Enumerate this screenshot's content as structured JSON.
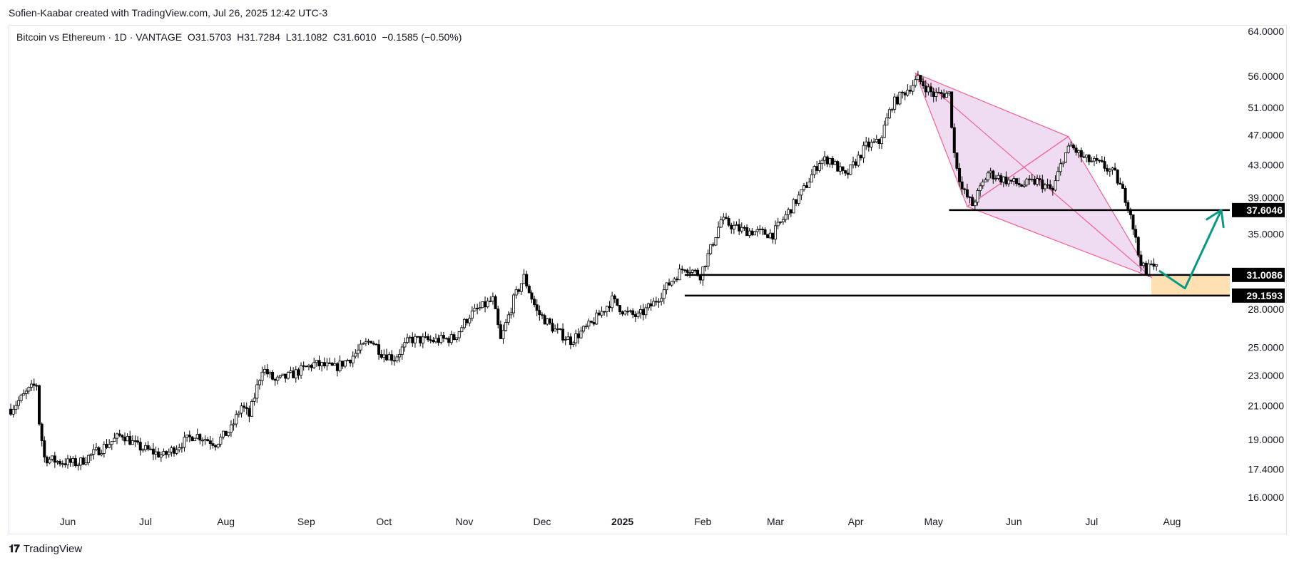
{
  "header": {
    "attribution": "Sofien-Kaabar created with TradingView.com, Jul 26, 2025 12:42 UTC-3"
  },
  "legend": {
    "symbol": "Bitcoin vs Ethereum · 1D · VANTAGE",
    "ohlc": "O31.5703  H31.7284  L31.1082  C31.6010  −0.1585 (−0.50%)"
  },
  "footer": {
    "brand": "TradingView",
    "logo_icon": "tv-logo-icon"
  },
  "chart_data": {
    "type": "candlestick",
    "scale": "log",
    "ylim": [
      15.2,
      66
    ],
    "y_ticks": [
      "64.0000",
      "56.0000",
      "51.0000",
      "47.0000",
      "43.0000",
      "39.0000",
      "35.0000",
      "28.0000",
      "25.0000",
      "23.0000",
      "21.0000",
      "19.0000",
      "17.4000",
      "16.0000"
    ],
    "x_ticks": [
      "Jun",
      "Jul",
      "Aug",
      "Sep",
      "Oct",
      "Nov",
      "Dec",
      "2025",
      "Feb",
      "Mar",
      "Apr",
      "May",
      "Jun",
      "Jul",
      "Aug"
    ],
    "x_tick_dates": [
      "2024-06-01",
      "2024-07-01",
      "2024-08-01",
      "2024-09-01",
      "2024-10-01",
      "2024-11-01",
      "2024-12-01",
      "2025-01-01",
      "2025-02-01",
      "2025-03-01",
      "2025-04-01",
      "2025-05-01",
      "2025-06-01",
      "2025-07-01",
      "2025-08-01"
    ],
    "series": [
      {
        "kind": "close-path",
        "points": [
          [
            "2024-05-10",
            20.8
          ],
          [
            "2024-05-17",
            22.0
          ],
          [
            "2024-05-20",
            22.4
          ],
          [
            "2024-05-21",
            20.0
          ],
          [
            "2024-05-23",
            18.0
          ],
          [
            "2024-05-28",
            17.8
          ],
          [
            "2024-06-05",
            17.7
          ],
          [
            "2024-06-15",
            18.6
          ],
          [
            "2024-06-22",
            19.3
          ],
          [
            "2024-06-28",
            18.6
          ],
          [
            "2024-07-08",
            18.1
          ],
          [
            "2024-07-15",
            18.8
          ],
          [
            "2024-07-20",
            19.3
          ],
          [
            "2024-07-28",
            18.8
          ],
          [
            "2024-08-03",
            19.6
          ],
          [
            "2024-08-07",
            21.0
          ],
          [
            "2024-08-10",
            20.4
          ],
          [
            "2024-08-15",
            23.5
          ],
          [
            "2024-08-20",
            22.6
          ],
          [
            "2024-08-26",
            23.0
          ],
          [
            "2024-09-04",
            23.8
          ],
          [
            "2024-09-12",
            23.5
          ],
          [
            "2024-09-18",
            24.2
          ],
          [
            "2024-09-26",
            25.6
          ],
          [
            "2024-09-30",
            24.6
          ],
          [
            "2024-10-05",
            24.2
          ],
          [
            "2024-10-11",
            25.6
          ],
          [
            "2024-10-20",
            25.5
          ],
          [
            "2024-10-28",
            25.7
          ],
          [
            "2024-11-03",
            27.5
          ],
          [
            "2024-11-12",
            28.8
          ],
          [
            "2024-11-15",
            25.5
          ],
          [
            "2024-11-20",
            28.8
          ],
          [
            "2024-11-24",
            30.8
          ],
          [
            "2024-11-29",
            27.8
          ],
          [
            "2024-12-06",
            26.3
          ],
          [
            "2024-12-12",
            25.5
          ],
          [
            "2024-12-20",
            26.8
          ],
          [
            "2024-12-28",
            28.8
          ],
          [
            "2025-01-02",
            27.7
          ],
          [
            "2025-01-07",
            27.4
          ],
          [
            "2025-01-13",
            28.5
          ],
          [
            "2025-01-20",
            30.5
          ],
          [
            "2025-01-25",
            31.8
          ],
          [
            "2025-01-31",
            31.0
          ],
          [
            "2025-02-04",
            33.5
          ],
          [
            "2025-02-08",
            36.5
          ],
          [
            "2025-02-15",
            35.5
          ],
          [
            "2025-02-22",
            35.2
          ],
          [
            "2025-02-28",
            35.0
          ],
          [
            "2025-03-05",
            37.0
          ],
          [
            "2025-03-12",
            40.0
          ],
          [
            "2025-03-18",
            43.5
          ],
          [
            "2025-03-22",
            43.8
          ],
          [
            "2025-03-28",
            41.5
          ],
          [
            "2025-04-05",
            45.5
          ],
          [
            "2025-04-10",
            46.0
          ],
          [
            "2025-04-15",
            51.5
          ],
          [
            "2025-04-20",
            53.5
          ],
          [
            "2025-04-25",
            55.5
          ],
          [
            "2025-05-01",
            53.0
          ],
          [
            "2025-05-07",
            53.2
          ],
          [
            "2025-05-09",
            44.5
          ],
          [
            "2025-05-12",
            40.0
          ],
          [
            "2025-05-16",
            38.2
          ],
          [
            "2025-05-22",
            42.0
          ],
          [
            "2025-05-28",
            41.2
          ],
          [
            "2025-06-04",
            40.5
          ],
          [
            "2025-06-10",
            41.0
          ],
          [
            "2025-06-16",
            39.8
          ],
          [
            "2025-06-20",
            44.0
          ],
          [
            "2025-06-23",
            45.5
          ],
          [
            "2025-06-28",
            43.8
          ],
          [
            "2025-07-05",
            43.0
          ],
          [
            "2025-07-10",
            41.8
          ],
          [
            "2025-07-14",
            39.0
          ],
          [
            "2025-07-16",
            37.3
          ],
          [
            "2025-07-19",
            33.0
          ],
          [
            "2025-07-22",
            31.0
          ],
          [
            "2025-07-24",
            32.5
          ],
          [
            "2025-07-26",
            31.6
          ]
        ]
      },
      {
        "kind": "support",
        "value": 37.6046,
        "label": "37.6046",
        "from": "2025-05-07"
      },
      {
        "kind": "support",
        "value": 31.0086,
        "label": "31.0086",
        "from": "2025-01-25"
      },
      {
        "kind": "support",
        "value": 29.1593,
        "label": "29.1593",
        "from": "2025-01-25"
      }
    ],
    "harmonic_pattern": {
      "points": [
        [
          "2025-04-24",
          56.5
        ],
        [
          "2025-05-14",
          38.0
        ],
        [
          "2025-06-22",
          46.8
        ],
        [
          "2025-07-24",
          30.8
        ]
      ],
      "fill": "#e1bee7",
      "stroke": "#f06292"
    },
    "target_zone": {
      "from": "2025-07-24",
      "y_low": 29.1593,
      "y_high": 31.0086,
      "color": "#ffe0b2"
    },
    "projection_arrow": {
      "points": [
        [
          "2025-07-27",
          31.4
        ],
        [
          "2025-08-06",
          29.8
        ],
        [
          "2025-08-20",
          37.6
        ]
      ],
      "color": "#089981"
    },
    "colors": {
      "up": "#ffffff",
      "down": "#000000",
      "wick": "#000000",
      "axis_text": "#131722",
      "grid": "#f0f3fa"
    }
  }
}
